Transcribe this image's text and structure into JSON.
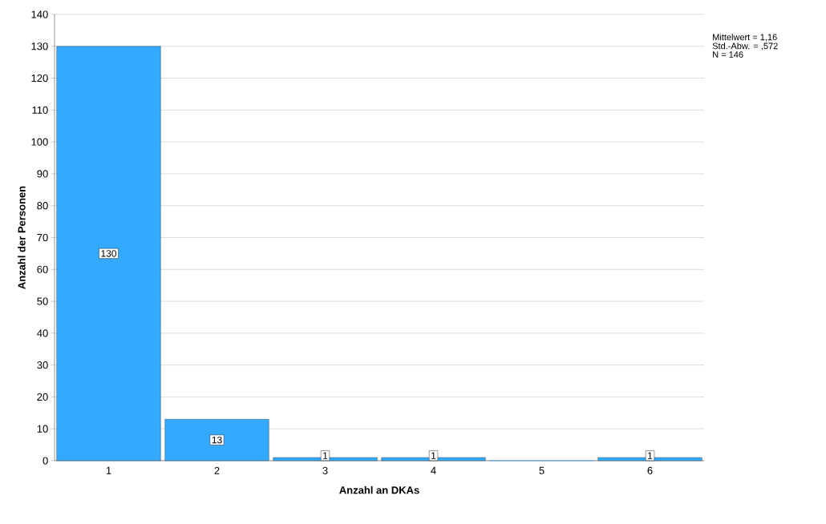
{
  "chart_data": {
    "type": "bar",
    "xlabel": "Anzahl an DKAs",
    "ylabel": "Anzahl der Personen",
    "categories": [
      "1",
      "2",
      "3",
      "4",
      "5",
      "6"
    ],
    "values": [
      130,
      13,
      1,
      1,
      0,
      1
    ],
    "value_labels": [
      "130",
      "13",
      "1",
      "1",
      null,
      "1"
    ],
    "color": "#33aaff",
    "ylim": [
      0,
      140
    ],
    "yticks": [
      0,
      10,
      20,
      30,
      40,
      50,
      60,
      70,
      80,
      90,
      100,
      110,
      120,
      130,
      140
    ],
    "grid": "y",
    "annotations": [
      "Mittelwert = 1,16",
      "Std.-Abw. = ,572",
      "N = 146"
    ]
  }
}
